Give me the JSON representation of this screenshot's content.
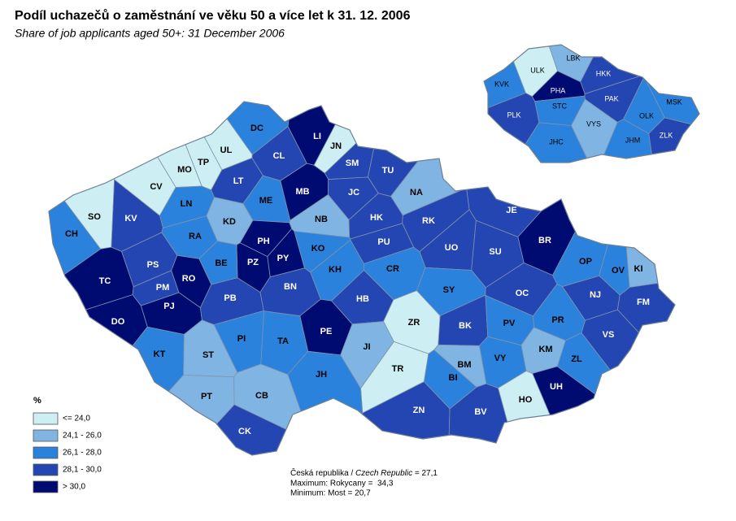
{
  "header": {
    "title": "Podíl uchazečů o zaměstnání ve věku 50 a více let k 31. 12. 2006",
    "subtitle": "Share of job applicants aged 50+: 31 December 2006"
  },
  "legend": {
    "title": "%",
    "items": [
      {
        "label": "<= 24,0",
        "color": "#cdeef2"
      },
      {
        "label": "24,1 - 26,0",
        "color": "#80b4e2"
      },
      {
        "label": "26,1 - 28,0",
        "color": "#2a82dc"
      },
      {
        "label": "28,1 - 30,0",
        "color": "#2446b2"
      },
      {
        "label": "> 30,0",
        "color": "#000b72"
      }
    ]
  },
  "districts": [
    {
      "label": "DC",
      "color": "#2a82dc"
    },
    {
      "label": "UL",
      "color": "#cdeef2"
    },
    {
      "label": "LI",
      "color": "#000b72"
    },
    {
      "label": "JN",
      "color": "#cdeef2"
    },
    {
      "label": "CL",
      "color": "#2446b2"
    },
    {
      "label": "TP",
      "color": "#cdeef2"
    },
    {
      "label": "MO",
      "color": "#cdeef2"
    },
    {
      "label": "SM",
      "color": "#2446b2"
    },
    {
      "label": "TU",
      "color": "#2446b2"
    },
    {
      "label": "CV",
      "color": "#cdeef2"
    },
    {
      "label": "LT",
      "color": "#2446b2"
    },
    {
      "label": "ME",
      "color": "#2a82dc"
    },
    {
      "label": "MB",
      "color": "#000b72"
    },
    {
      "label": "JC",
      "color": "#2446b2"
    },
    {
      "label": "NA",
      "color": "#80b4e2"
    },
    {
      "label": "LN",
      "color": "#2a82dc"
    },
    {
      "label": "SO",
      "color": "#cdeef2"
    },
    {
      "label": "KV",
      "color": "#2446b2"
    },
    {
      "label": "KD",
      "color": "#80b4e2"
    },
    {
      "label": "NB",
      "color": "#80b4e2"
    },
    {
      "label": "HK",
      "color": "#2446b2"
    },
    {
      "label": "RK",
      "color": "#2446b2"
    },
    {
      "label": "JE",
      "color": "#2446b2"
    },
    {
      "label": "CH",
      "color": "#2a82dc"
    },
    {
      "label": "RA",
      "color": "#2a82dc"
    },
    {
      "label": "PH",
      "color": "#000b72"
    },
    {
      "label": "PU",
      "color": "#2446b2"
    },
    {
      "label": "BR",
      "color": "#000b72"
    },
    {
      "label": "KO",
      "color": "#2a82dc"
    },
    {
      "label": "PZ",
      "color": "#000b72"
    },
    {
      "label": "PY",
      "color": "#000b72"
    },
    {
      "label": "BE",
      "color": "#2a82dc"
    },
    {
      "label": "UO",
      "color": "#2446b2"
    },
    {
      "label": "SU",
      "color": "#2446b2"
    },
    {
      "label": "OP",
      "color": "#2a82dc"
    },
    {
      "label": "OV",
      "color": "#2a82dc"
    },
    {
      "label": "KI",
      "color": "#80b4e2"
    },
    {
      "label": "PS",
      "color": "#2446b2"
    },
    {
      "label": "TC",
      "color": "#000b72"
    },
    {
      "label": "RO",
      "color": "#000b72"
    },
    {
      "label": "KH",
      "color": "#2a82dc"
    },
    {
      "label": "CR",
      "color": "#2a82dc"
    },
    {
      "label": "PM",
      "color": "#2446b2"
    },
    {
      "label": "BN",
      "color": "#2446b2"
    },
    {
      "label": "SY",
      "color": "#2a82dc"
    },
    {
      "label": "OC",
      "color": "#2446b2"
    },
    {
      "label": "NJ",
      "color": "#2446b2"
    },
    {
      "label": "PJ",
      "color": "#000b72"
    },
    {
      "label": "PB",
      "color": "#2446b2"
    },
    {
      "label": "HB",
      "color": "#2446b2"
    },
    {
      "label": "FM",
      "color": "#2446b2"
    },
    {
      "label": "DO",
      "color": "#000b72"
    },
    {
      "label": "ZR",
      "color": "#cdeef2"
    },
    {
      "label": "PR",
      "color": "#2a82dc"
    },
    {
      "label": "BK",
      "color": "#2446b2"
    },
    {
      "label": "PV",
      "color": "#2a82dc"
    },
    {
      "label": "VS",
      "color": "#2446b2"
    },
    {
      "label": "PE",
      "color": "#000b72"
    },
    {
      "label": "PI",
      "color": "#2a82dc"
    },
    {
      "label": "TA",
      "color": "#2a82dc"
    },
    {
      "label": "JI",
      "color": "#80b4e2"
    },
    {
      "label": "KM",
      "color": "#80b4e2"
    },
    {
      "label": "KT",
      "color": "#2a82dc"
    },
    {
      "label": "ST",
      "color": "#80b4e2"
    },
    {
      "label": "BM",
      "color": "#80b4e2"
    },
    {
      "label": "VY",
      "color": "#2a82dc"
    },
    {
      "label": "ZL",
      "color": "#2a82dc"
    },
    {
      "label": "TR",
      "color": "#cdeef2"
    },
    {
      "label": "JH",
      "color": "#2a82dc"
    },
    {
      "label": "BI",
      "color": "#2a82dc"
    },
    {
      "label": "UH",
      "color": "#000b72"
    },
    {
      "label": "PT",
      "color": "#80b4e2"
    },
    {
      "label": "CB",
      "color": "#80b4e2"
    },
    {
      "label": "HO",
      "color": "#cdeef2"
    },
    {
      "label": "ZN",
      "color": "#2446b2"
    },
    {
      "label": "BV",
      "color": "#2446b2"
    },
    {
      "label": "CK",
      "color": "#2446b2"
    }
  ],
  "regions": [
    {
      "label": "ULK",
      "color": "#cdeef2"
    },
    {
      "label": "LBK",
      "color": "#80b4e2"
    },
    {
      "label": "HKK",
      "color": "#2446b2"
    },
    {
      "label": "KVK",
      "color": "#2a82dc"
    },
    {
      "label": "PHA",
      "color": "#000b72"
    },
    {
      "label": "PAK",
      "color": "#2446b2"
    },
    {
      "label": "MSK",
      "color": "#2a82dc"
    },
    {
      "label": "STC",
      "color": "#2a82dc"
    },
    {
      "label": "PLK",
      "color": "#2446b2"
    },
    {
      "label": "OLK",
      "color": "#2a82dc"
    },
    {
      "label": "VYS",
      "color": "#80b4e2"
    },
    {
      "label": "ZLK",
      "color": "#2446b2"
    },
    {
      "label": "JHC",
      "color": "#2a82dc"
    },
    {
      "label": "JHM",
      "color": "#2a82dc"
    }
  ],
  "footnote": {
    "line1": [
      "Česká republika / ",
      "Czech Republic",
      " = 27,1"
    ],
    "line2": "Maximum: Rokycany =  34,3",
    "line3": "Minimum: Most = 20,7"
  }
}
